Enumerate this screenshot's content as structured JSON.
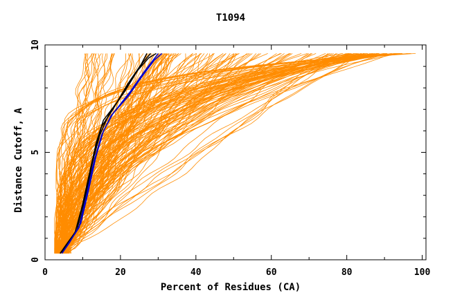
{
  "chart_data": {
    "type": "line",
    "title": "T1094",
    "xlabel": "Percent of Residues (CA)",
    "ylabel": "Distance Cutoff, A",
    "xlim": [
      0,
      101
    ],
    "ylim": [
      0,
      10
    ],
    "x_ticks": [
      0,
      20,
      40,
      60,
      80,
      100
    ],
    "y_ticks": [
      0,
      5,
      10
    ],
    "grid": false,
    "colors": {
      "background_series": "#ff8c00",
      "highlight_black": "#000000",
      "highlight_blue": "#0000cc",
      "axes": "#000000"
    },
    "series": [
      {
        "color": "black",
        "points": [
          [
            4,
            0.3
          ],
          [
            6,
            0.7
          ],
          [
            9,
            1.5
          ],
          [
            10.5,
            2.8
          ],
          [
            12,
            4.0
          ],
          [
            13.5,
            5.4
          ],
          [
            15.5,
            6.5
          ],
          [
            19,
            7.3
          ],
          [
            23,
            8.4
          ],
          [
            26,
            9.2
          ],
          [
            28,
            9.6
          ]
        ]
      },
      {
        "color": "black",
        "points": [
          [
            4,
            0.3
          ],
          [
            6,
            0.8
          ],
          [
            8.5,
            1.4
          ],
          [
            10.5,
            3.0
          ],
          [
            12.5,
            4.5
          ],
          [
            14.5,
            5.8
          ],
          [
            17,
            6.8
          ],
          [
            21,
            7.8
          ],
          [
            24.5,
            8.8
          ],
          [
            27.5,
            9.4
          ],
          [
            29.5,
            9.6
          ]
        ]
      },
      {
        "color": "black",
        "points": [
          [
            4,
            0.3
          ],
          [
            5.5,
            0.6
          ],
          [
            8,
            1.3
          ],
          [
            10,
            2.6
          ],
          [
            11.5,
            3.8
          ],
          [
            13,
            5.0
          ],
          [
            15,
            6.2
          ],
          [
            18,
            7.0
          ],
          [
            22,
            8.2
          ],
          [
            25.5,
            9.1
          ],
          [
            27,
            9.6
          ]
        ]
      },
      {
        "color": "blue",
        "points": [
          [
            4.5,
            0.3
          ],
          [
            6,
            0.7
          ],
          [
            9,
            1.5
          ],
          [
            11,
            3.0
          ],
          [
            13,
            4.6
          ],
          [
            15,
            5.8
          ],
          [
            17.5,
            6.7
          ],
          [
            22,
            7.6
          ],
          [
            26,
            8.6
          ],
          [
            29,
            9.3
          ],
          [
            31,
            9.6
          ]
        ]
      },
      {
        "color": "blue",
        "points": [
          [
            4.5,
            0.3
          ],
          [
            6.5,
            0.8
          ],
          [
            9.5,
            1.7
          ],
          [
            11.5,
            3.2
          ],
          [
            13.5,
            4.8
          ],
          [
            15.5,
            6.0
          ],
          [
            18,
            6.8
          ],
          [
            22.5,
            7.8
          ],
          [
            26.5,
            8.8
          ],
          [
            30,
            9.6
          ]
        ]
      }
    ]
  }
}
